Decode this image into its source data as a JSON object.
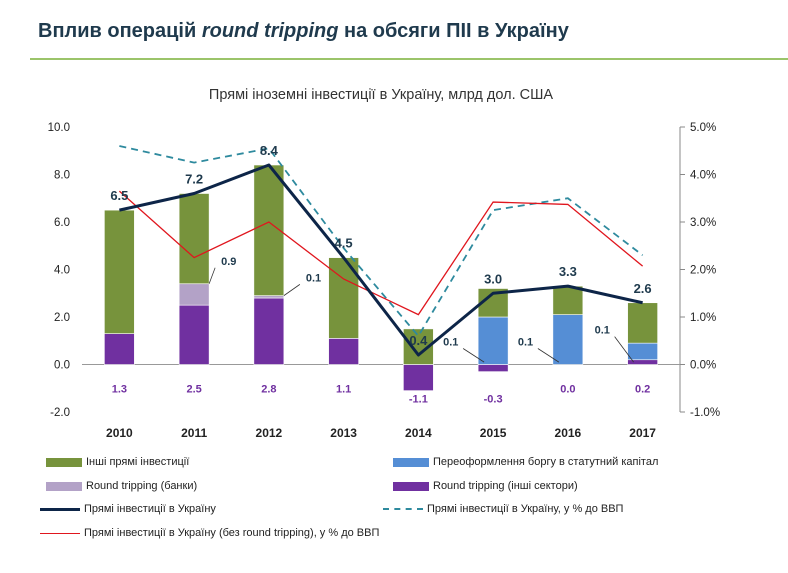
{
  "page": {
    "title_prefix": "Вплив операцій ",
    "title_italic": "round tripping",
    "title_suffix": " на обсяги ПІІ в Україну"
  },
  "chart_data": {
    "type": "bar",
    "title": "Прямі іноземні інвестиції в Україну, млрд дол. США",
    "categories": [
      "2010",
      "2011",
      "2012",
      "2013",
      "2014",
      "2015",
      "2016",
      "2017"
    ],
    "ylim": [
      -2.0,
      10.0
    ],
    "yticks": [
      "-2.0",
      "0.0",
      "2.0",
      "4.0",
      "6.0",
      "8.0",
      "10.0"
    ],
    "y2lim": [
      -1.0,
      5.0
    ],
    "y2ticks": [
      "-1.0%",
      "0.0%",
      "1.0%",
      "2.0%",
      "3.0%",
      "4.0%",
      "5.0%"
    ],
    "colors": {
      "other": "#77933c",
      "debt": "#558ed5",
      "rt_banks": "#b3a2c7",
      "rt_other": "#7030a0",
      "total": "#0d2548",
      "pct": "#2e8a9e",
      "pct_excl": "#e0161e",
      "label_rt": "#7030a0"
    },
    "series": [
      {
        "key": "rt_other",
        "name": "Round tripping (інші сектори)",
        "values": [
          1.3,
          2.5,
          2.8,
          1.1,
          -1.1,
          -0.3,
          0.0,
          0.2
        ]
      },
      {
        "key": "rt_banks",
        "name": "Round tripping (банки)",
        "values": [
          0.0,
          0.9,
          0.1,
          0.0,
          0.0,
          0.0,
          0.0,
          0.0
        ]
      },
      {
        "key": "debt",
        "name": "Переоформлення боргу в статутний капітал",
        "values": [
          0.0,
          0.0,
          0.0,
          0.0,
          0.0,
          2.0,
          2.1,
          0.7
        ]
      },
      {
        "key": "other",
        "name": "Інші прямі інвестиції",
        "values": [
          5.2,
          3.8,
          5.5,
          3.4,
          1.5,
          1.2,
          1.2,
          1.7
        ]
      }
    ],
    "total": {
      "name": "Прямі інвестиції в Україну",
      "values": [
        6.5,
        7.2,
        8.4,
        4.5,
        0.4,
        3.0,
        3.3,
        2.6
      ]
    },
    "total_labels": [
      "6.5",
      "7.2",
      "8.4",
      "4.5",
      "0.4",
      "3.0",
      "3.3",
      "2.6"
    ],
    "rt_labels": [
      "1.3",
      "2.5",
      "2.8",
      "1.1",
      "-1.1",
      "-0.3",
      "0.0",
      "0.2"
    ],
    "callouts": [
      {
        "index": 1,
        "text": "0.9"
      },
      {
        "index": 2,
        "text": "0.1"
      },
      {
        "index": 5,
        "text": "0.1"
      },
      {
        "index": 6,
        "text": "0.1"
      },
      {
        "index": 7,
        "text": "0.1"
      }
    ],
    "pct_gdp": {
      "name": "Прямі інвестиції в Україну, у % до ВВП",
      "values": [
        4.6,
        4.25,
        4.55,
        2.45,
        0.6,
        3.25,
        3.5,
        2.3
      ]
    },
    "pct_gdp_excl": {
      "name": "Прямі інвестиції в Україну (без round tripping), у % до ВВП",
      "values": [
        3.65,
        2.25,
        3.0,
        1.8,
        1.05,
        3.42,
        3.37,
        2.07
      ]
    }
  },
  "legend": {
    "other": "Інші прямі інвестиції",
    "debt": "Переоформлення боргу в статутний капітал",
    "rt_banks": "Round tripping (банки)",
    "rt_other": "Round tripping (інші сектори)",
    "total": "Прямі інвестиції в Україну",
    "pct": "Прямі інвестиції в Україну, у % до ВВП",
    "pct_excl": "Прямі інвестиції в Україну (без round tripping), у % до ВВП"
  }
}
